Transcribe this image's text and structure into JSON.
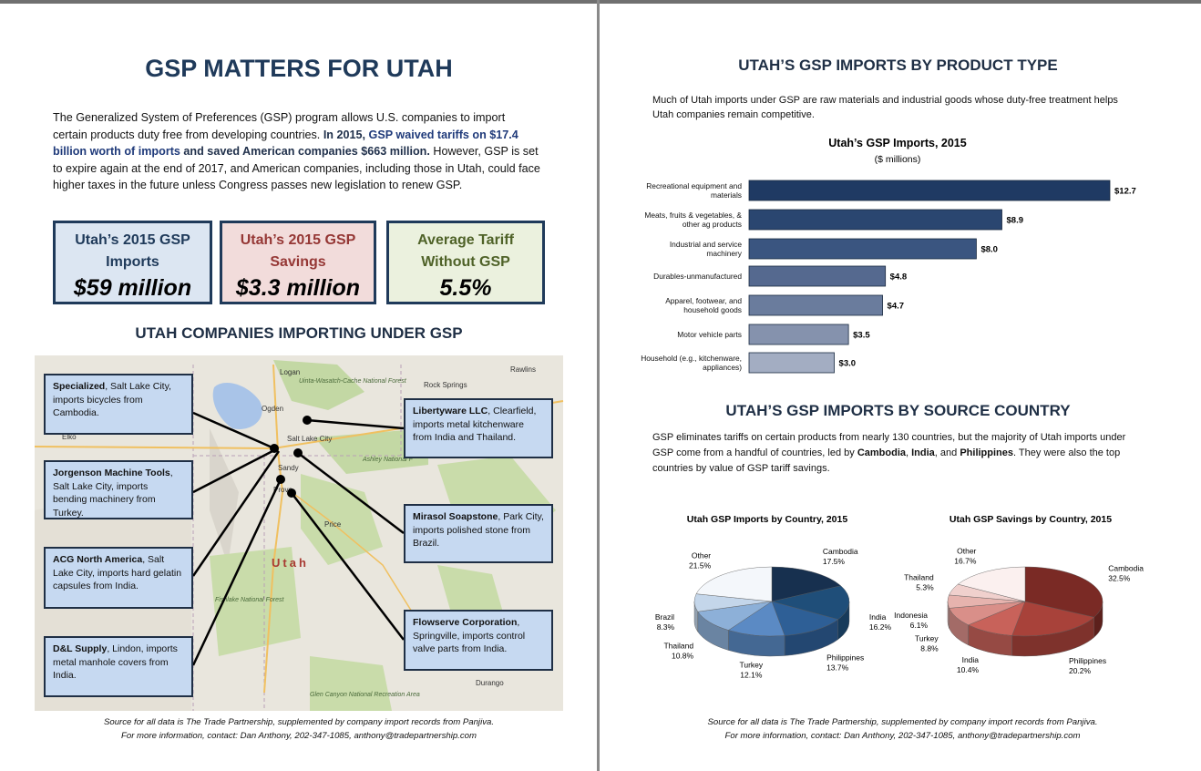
{
  "left": {
    "title": "GSP MATTERS FOR UTAH",
    "intro": [
      "The Generalized System of Preferences (GSP) program allows U.S. companies to import certain products duty free from developing countries. ",
      "In 2015, ",
      "GSP waived tariffs on $17.4 billion worth of imports",
      " and saved American companies $663 million.",
      "  However, GSP is set to expire again at the end of 2017, and American companies, including those in Utah, could face higher taxes in the future unless Congress passes new legislation to renew GSP."
    ],
    "stats": [
      {
        "label": "Utah’s 2015 GSP Imports",
        "value": "$59 million"
      },
      {
        "label": "Utah’s 2015 GSP Savings",
        "value": "$3.3 million"
      },
      {
        "label": "Average Tariff Without GSP",
        "value": "5.5%"
      }
    ],
    "companies_heading": "UTAH COMPANIES IMPORTING UNDER GSP",
    "map_labels": [
      "Logan",
      "Ogden",
      "Salt Lake City",
      "Sandy",
      "Provo",
      "Price",
      "Utah",
      "Rock Springs",
      "Rawlins",
      "Elko",
      "Durango",
      "Uinta-Wasatch-Cache National Forest",
      "Ashley National F",
      "Fishlake National Forest",
      "Glen Canyon National Recreation Area"
    ],
    "callouts": [
      {
        "name": "Specialized",
        "text": ", Salt Lake City, imports bicycles from Cambodia."
      },
      {
        "name": "Jorgenson Machine Tools",
        "text": ", Salt Lake City, imports bending machinery from Turkey."
      },
      {
        "name": "ACG North America",
        "text": ", Salt Lake City, imports hard gelatin capsules from India."
      },
      {
        "name": "D&L Supply",
        "text": ", Lindon, imports metal manhole covers from India."
      },
      {
        "name": "Libertyware LLC",
        "text": ", Clearfield, imports metal kitchenware from India and Thailand."
      },
      {
        "name": "Mirasol Soapstone",
        "text": ", Park City, imports polished stone from Brazil."
      },
      {
        "name": "Flowserve Corporation",
        "text": ", Springville, imports control valve parts from India."
      }
    ],
    "source": [
      "Source for all data is The Trade Partnership, supplemented by company import records from Panjiva.",
      "For more information, contact: Dan Anthony, 202-347-1085, anthony@tradepartnership.com"
    ]
  },
  "right": {
    "heading1": "UTAH’S GSP IMPORTS BY PRODUCT TYPE",
    "intro1": "Much of Utah imports under GSP are raw materials and industrial goods whose duty-free treatment helps Utah companies remain competitive.",
    "heading2": "UTAH’S GSP IMPORTS BY SOURCE COUNTRY",
    "intro2": [
      "GSP eliminates tariffs on certain products from nearly 130 countries, but the majority of Utah imports under GSP come from a handful of countries, led by ",
      "Cambodia",
      ", ",
      "India",
      ", and ",
      "Philippines",
      ". They were also the top countries by value of GSP tariff savings."
    ],
    "source": [
      "Source for all data is The Trade Partnership, supplemented by company import records from Panjiva.",
      "For more information, contact: Dan Anthony, 202-347-1085, anthony@tradepartnership.com"
    ]
  },
  "chart_data": [
    {
      "type": "bar",
      "orientation": "horizontal",
      "title": "Utah’s GSP Imports, 2015",
      "subtitle": "($ millions)",
      "categories": [
        "Recreational equipment and materials",
        "Meats, fruits & vegetables, & other ag products",
        "Industrial and service machinery",
        "Durables-unmanufactured",
        "Apparel, footwear, and household goods",
        "Motor vehicle parts",
        "Household  (e.g., kitchenware, appliances)"
      ],
      "values": [
        12.7,
        8.9,
        8.0,
        4.8,
        4.7,
        3.5,
        3.0
      ],
      "value_labels": [
        "$12.7",
        "$8.9",
        "$8.0",
        "$4.8",
        "$4.7",
        "$3.5",
        "$3.0"
      ],
      "colors": [
        "#1f3a63",
        "#2a4670",
        "#3a5580",
        "#55698f",
        "#6a7c9d",
        "#8592ad",
        "#a3adc2"
      ]
    },
    {
      "type": "pie",
      "title": "Utah GSP Imports by Country, 2015",
      "categories": [
        "Cambodia",
        "India",
        "Philippines",
        "Turkey",
        "Thailand",
        "Brazil",
        "Other"
      ],
      "values": [
        17.5,
        16.2,
        13.7,
        12.1,
        10.8,
        8.3,
        21.5
      ],
      "value_labels": [
        "17.5%",
        "16.2%",
        "13.7%",
        "12.1%",
        "10.8%",
        "8.3%",
        "21.5%"
      ],
      "colors": [
        "#17304f",
        "#1f4e79",
        "#2e5f96",
        "#5b8ac4",
        "#8db0d8",
        "#c4d6ea",
        "#f4f7fb"
      ]
    },
    {
      "type": "pie",
      "title": "Utah GSP Savings by Country, 2015",
      "categories": [
        "Cambodia",
        "Philippines",
        "India",
        "Turkey",
        "Indonesia",
        "Thailand",
        "Other"
      ],
      "values": [
        32.5,
        20.2,
        10.4,
        8.8,
        6.1,
        5.3,
        16.7
      ],
      "value_labels": [
        "32.5%",
        "20.2%",
        "10.4%",
        "8.8%",
        "6.1%",
        "5.3%",
        "16.7%"
      ],
      "colors": [
        "#7a2a25",
        "#a8423a",
        "#c8625a",
        "#d98f89",
        "#e6b3ae",
        "#f0d0cd",
        "#fbf0ef"
      ]
    }
  ]
}
